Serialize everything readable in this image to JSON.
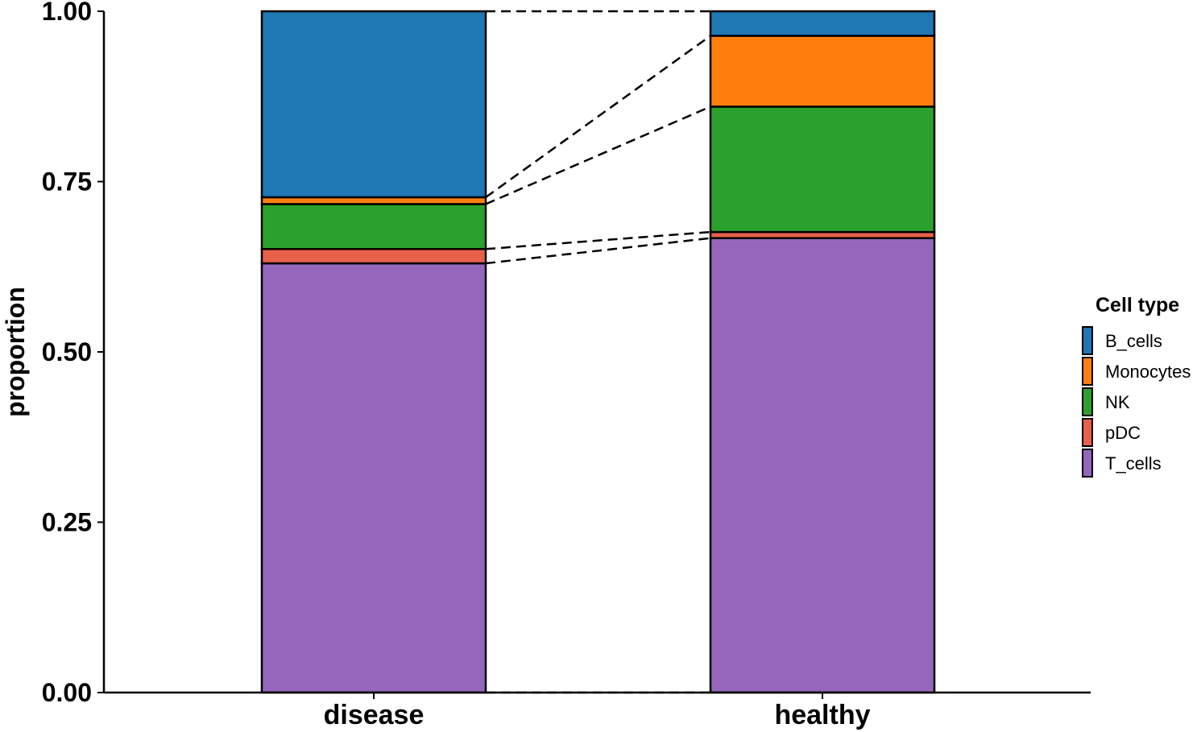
{
  "chart_data": {
    "type": "bar",
    "stacked": true,
    "normalized": true,
    "categories": [
      "disease",
      "healthy"
    ],
    "series": [
      {
        "name": "T_cells",
        "color": "#9467BD",
        "values": [
          0.63,
          0.667
        ]
      },
      {
        "name": "pDC",
        "color": "#E8604A",
        "values": [
          0.021,
          0.009
        ]
      },
      {
        "name": "NK",
        "color": "#2CA02C",
        "values": [
          0.066,
          0.184
        ]
      },
      {
        "name": "Monocytes",
        "color": "#FF7F0E",
        "values": [
          0.01,
          0.104
        ]
      },
      {
        "name": "B_cells",
        "color": "#1F77B4",
        "values": [
          0.273,
          0.036
        ]
      }
    ],
    "legend_order": [
      "B_cells",
      "Monocytes",
      "NK",
      "pDC",
      "T_cells"
    ],
    "ylabel": "proportion",
    "xlabel": "",
    "ylim": [
      0,
      1
    ],
    "yticks": [
      "0.00",
      "0.25",
      "0.50",
      "0.75",
      "1.00"
    ],
    "legend_title": "Cell type",
    "legend_position": "right",
    "grid": false,
    "connectors": "dashed lines joining segment boundaries between adjacent bars"
  }
}
